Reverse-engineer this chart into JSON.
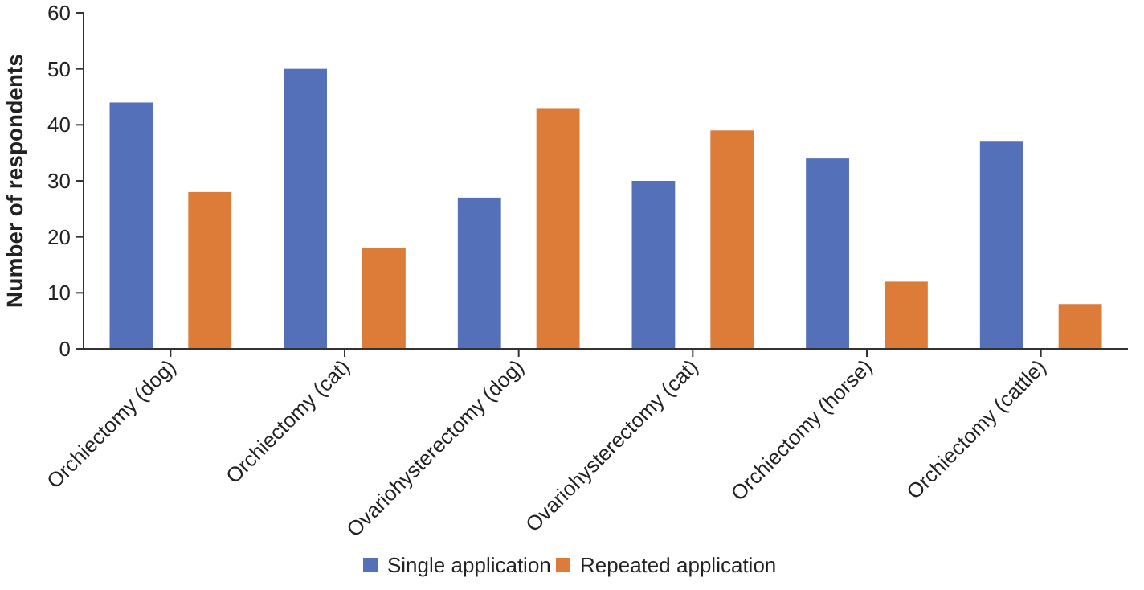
{
  "chart_data": {
    "type": "bar",
    "ylabel": "Number of respondents",
    "categories": [
      "Orchiectomy (dog)",
      "Orchiectomy (cat)",
      "Ovariohysterectomy (dog)",
      "Ovariohysterectomy (cat)",
      "Orchiectomy (horse)",
      "Orchiectomy (cattle)"
    ],
    "series": [
      {
        "name": "Single application",
        "color": "#5470b8",
        "values": [
          44,
          50,
          27,
          30,
          34,
          37
        ]
      },
      {
        "name": "Repeated application",
        "color": "#dd7b38",
        "values": [
          28,
          18,
          43,
          39,
          12,
          8
        ]
      }
    ],
    "ylim": [
      0,
      60
    ],
    "yticks": [
      0,
      10,
      20,
      30,
      40,
      50,
      60
    ],
    "grid": false,
    "legend": "bottom"
  }
}
